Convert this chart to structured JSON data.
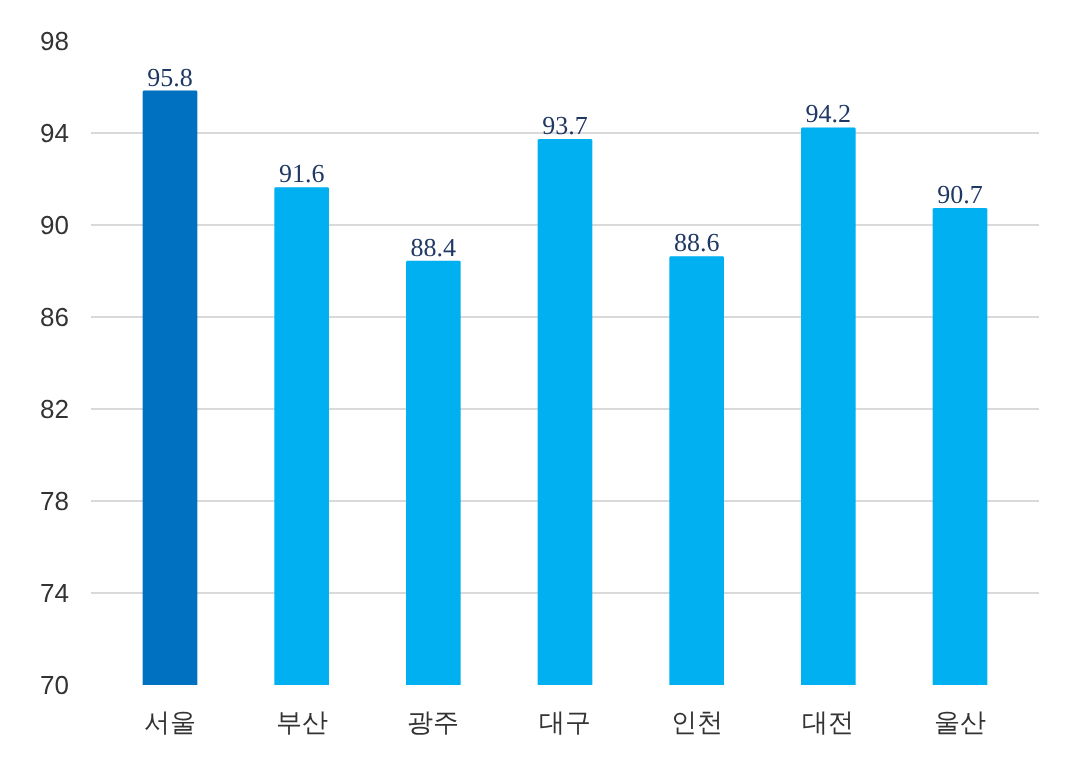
{
  "chart_data": {
    "type": "bar",
    "categories": [
      "서울",
      "부산",
      "광주",
      "대구",
      "인천",
      "대전",
      "울산"
    ],
    "values": [
      95.8,
      91.6,
      88.4,
      93.7,
      88.6,
      94.2,
      90.7
    ],
    "colors": [
      "#0070c0",
      "#00b0f0",
      "#00b0f0",
      "#00b0f0",
      "#00b0f0",
      "#00b0f0",
      "#00b0f0"
    ],
    "ylim": [
      70,
      98
    ],
    "yticks": [
      70,
      74,
      78,
      82,
      86,
      90,
      94,
      98
    ],
    "grid": "y",
    "data_labels": true
  }
}
